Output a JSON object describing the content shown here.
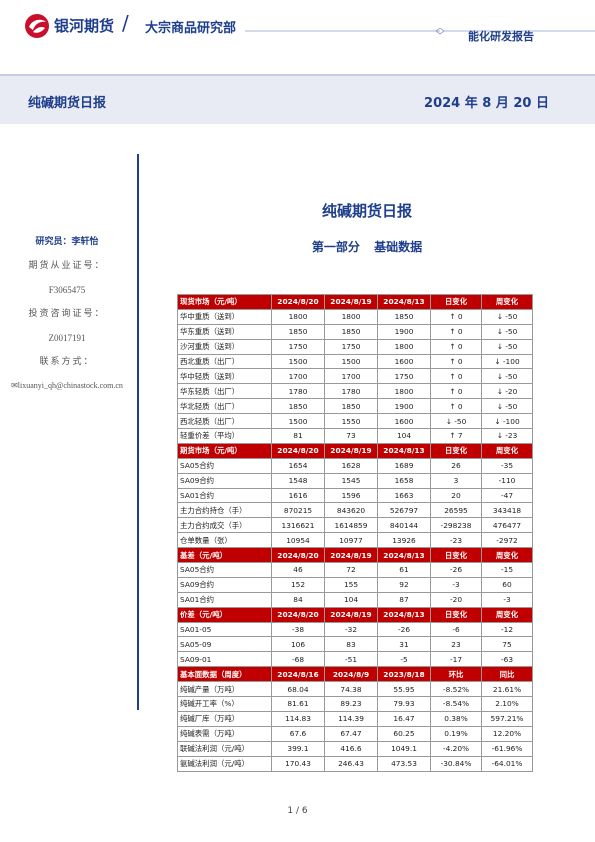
{
  "header": {
    "brand": "银河期货",
    "dept": "大宗商品研究部",
    "report_type": "能化研发报告"
  },
  "band": {
    "title": "纯碱期货日报",
    "date": "2024 年 8 月 20 日"
  },
  "side": {
    "researcher": "研究员：李轩怡",
    "license_label": "期货从业证号：",
    "license_no": "F3065475",
    "advisory_label": "投资咨询证号：",
    "advisory_no": "Z0017191",
    "contact_label": "联系方式：",
    "email": "lixuanyi_qh@chinastock.com.cn"
  },
  "doc": {
    "title": "纯碱期货日报",
    "part": "第一部分 基础数据"
  },
  "table": {
    "sections": [
      {
        "header": [
          "现货市场（元/吨）",
          "2024/8/20",
          "2024/8/19",
          "2024/8/13",
          "日变化",
          "周变化"
        ],
        "rows": [
          [
            "华中重质（送到）",
            "1800",
            "1800",
            "1850",
            "↑ 0",
            "↓ -50"
          ],
          [
            "华东重质（送到）",
            "1850",
            "1850",
            "1900",
            "↑ 0",
            "↓ -50"
          ],
          [
            "沙河重质（送到）",
            "1750",
            "1750",
            "1800",
            "↑ 0",
            "↓ -50"
          ],
          [
            "西北重质（出厂）",
            "1500",
            "1500",
            "1600",
            "↑ 0",
            "↓ -100"
          ],
          [
            "华中轻质（送到）",
            "1700",
            "1700",
            "1750",
            "↑ 0",
            "↓ -50"
          ],
          [
            "华东轻质（出厂）",
            "1780",
            "1780",
            "1800",
            "↑ 0",
            "↓ -20"
          ],
          [
            "华北轻质（出厂）",
            "1850",
            "1850",
            "1900",
            "↑ 0",
            "↓ -50"
          ],
          [
            "西北轻质（出厂）",
            "1500",
            "1550",
            "1600",
            "↓ -50",
            "↓ -100"
          ],
          [
            "轻重价差（平均）",
            "81",
            "73",
            "104",
            "↑ 7",
            "↓ -23"
          ]
        ]
      },
      {
        "header": [
          "期货市场（元/吨）",
          "2024/8/20",
          "2024/8/19",
          "2024/8/13",
          "日变化",
          "周变化"
        ],
        "rows": [
          [
            "SA05合约",
            "1654",
            "1628",
            "1689",
            "26",
            "-35"
          ],
          [
            "SA09合约",
            "1548",
            "1545",
            "1658",
            "3",
            "-110"
          ],
          [
            "SA01合约",
            "1616",
            "1596",
            "1663",
            "20",
            "-47"
          ],
          [
            "主力合约持仓（手）",
            "870215",
            "843620",
            "526797",
            "26595",
            "343418"
          ],
          [
            "主力合约成交（手）",
            "1316621",
            "1614859",
            "840144",
            "-298238",
            "476477"
          ],
          [
            "仓单数量（张）",
            "10954",
            "10977",
            "13926",
            "-23",
            "-2972"
          ]
        ]
      },
      {
        "header": [
          "基差（元/吨）",
          "2024/8/20",
          "2024/8/19",
          "2024/8/13",
          "日变化",
          "周变化"
        ],
        "rows": [
          [
            "SA05合约",
            "46",
            "72",
            "61",
            "-26",
            "-15"
          ],
          [
            "SA09合约",
            "152",
            "155",
            "92",
            "-3",
            "60"
          ],
          [
            "SA01合约",
            "84",
            "104",
            "87",
            "-20",
            "-3"
          ]
        ]
      },
      {
        "header": [
          "价差（元/吨）",
          "2024/8/20",
          "2024/8/19",
          "2024/8/13",
          "日变化",
          "周变化"
        ],
        "rows": [
          [
            "SA01-05",
            "-38",
            "-32",
            "-26",
            "-6",
            "-12"
          ],
          [
            "SA05-09",
            "106",
            "83",
            "31",
            "23",
            "75"
          ],
          [
            "SA09-01",
            "-68",
            "-51",
            "-5",
            "-17",
            "-63"
          ]
        ]
      },
      {
        "header": [
          "基本面数据（周度）",
          "2024/8/16",
          "2024/8/9",
          "2023/8/18",
          "环比",
          "同比"
        ],
        "rows": [
          [
            "纯碱产量（万吨）",
            "68.04",
            "74.38",
            "55.95",
            "-8.52%",
            "21.61%"
          ],
          [
            "纯碱开工率（%）",
            "81.61",
            "89.23",
            "79.93",
            "-8.54%",
            "2.10%"
          ],
          [
            "纯碱厂库（万吨）",
            "114.83",
            "114.39",
            "16.47",
            "0.38%",
            "597.21%"
          ],
          [
            "纯碱表需（万吨）",
            "67.6",
            "67.47",
            "60.25",
            "0.19%",
            "12.20%"
          ],
          [
            "联碱法利润（元/吨）",
            "399.1",
            "416.6",
            "1049.1",
            "-4.20%",
            "-61.96%"
          ],
          [
            "氨碱法利润（元/吨）",
            "170.43",
            "246.43",
            "473.53",
            "-30.84%",
            "-64.01%"
          ]
        ]
      }
    ]
  },
  "footer": {
    "page": "1 / 6"
  }
}
